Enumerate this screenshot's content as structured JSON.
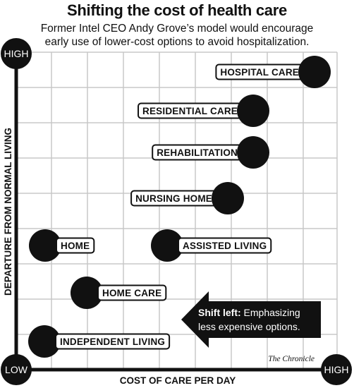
{
  "header": {
    "title": "Shifting the cost of health care",
    "subtitle_line1": "Former Intel CEO Andy Grove’s model would encourage",
    "subtitle_line2": "early use of lower-cost options to avoid hospitalization."
  },
  "axes": {
    "x_label": "COST OF CARE PER DAY",
    "y_label": "DEPARTURE FROM NORMAL LIVING",
    "origin_label": "LOW",
    "y_high_label": "HIGH",
    "x_high_label": "HIGH"
  },
  "care_options": [
    {
      "label": "HOSPITAL CARE"
    },
    {
      "label": "RESIDENTIAL CARE"
    },
    {
      "label": "REHABILITATION"
    },
    {
      "label": "NURSING HOME"
    },
    {
      "label": "HOME"
    },
    {
      "label": "ASSISTED LIVING"
    },
    {
      "label": "HOME CARE"
    },
    {
      "label": "INDEPENDENT LIVING"
    }
  ],
  "callout": {
    "bold": "Shift left:",
    "line1_rest": " Emphasizing",
    "line2": "less expensive options."
  },
  "credit": "The Chronicle",
  "colors": {
    "ink": "#111111",
    "grid": "#c8c8c8",
    "paper": "#ffffff"
  }
}
